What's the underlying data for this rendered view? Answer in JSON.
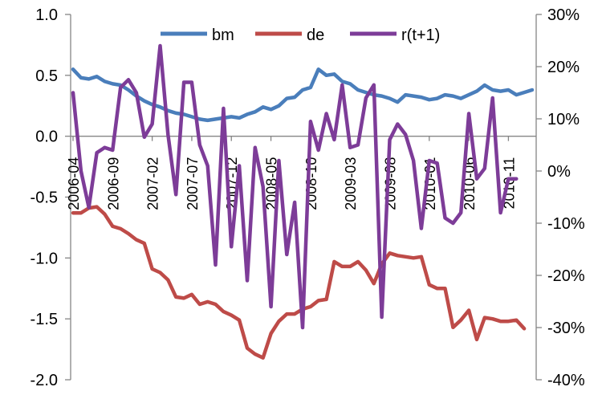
{
  "chart_data": {
    "type": "line",
    "x_tick_labels": [
      "2006-04",
      "2006-09",
      "2007-02",
      "2007-07",
      "2007-12",
      "2008-05",
      "2008-10",
      "2009-03",
      "2009-08",
      "2010-01",
      "2010-06",
      "2010-11"
    ],
    "y_left": {
      "ylim": [
        -2.0,
        1.0
      ],
      "ticks": [
        1.0,
        0.5,
        0.0,
        -0.5,
        -1.0,
        -1.5,
        -2.0
      ],
      "tick_labels": [
        "1.0",
        "0.5",
        "0.0",
        "-0.5",
        "-1.0",
        "-1.5",
        "-2.0"
      ]
    },
    "y_right": {
      "ylim": [
        -40,
        30
      ],
      "ticks": [
        30,
        20,
        10,
        0,
        -10,
        -20,
        -30,
        -40
      ],
      "tick_labels": [
        "30%",
        "20%",
        "10%",
        "0%",
        "-10%",
        "-20%",
        "-30%",
        "-40%"
      ]
    },
    "legend_placement": "top",
    "series": [
      {
        "name": "bm",
        "axis": "left",
        "color": "#4a7ebb",
        "values": [
          0.55,
          0.48,
          0.47,
          0.49,
          0.45,
          0.43,
          0.42,
          0.38,
          0.33,
          0.29,
          0.26,
          0.24,
          0.21,
          0.19,
          0.18,
          0.16,
          0.14,
          0.13,
          0.14,
          0.15,
          0.16,
          0.15,
          0.18,
          0.2,
          0.24,
          0.22,
          0.25,
          0.31,
          0.32,
          0.38,
          0.4,
          0.55,
          0.5,
          0.51,
          0.45,
          0.43,
          0.38,
          0.36,
          0.34,
          0.33,
          0.31,
          0.28,
          0.34,
          0.33,
          0.32,
          0.3,
          0.31,
          0.34,
          0.33,
          0.31,
          0.34,
          0.37,
          0.42,
          0.38,
          0.37,
          0.38,
          0.34,
          0.36,
          0.38
        ]
      },
      {
        "name": "de",
        "axis": "left",
        "color": "#be4b48",
        "values": [
          -0.63,
          -0.63,
          -0.59,
          -0.58,
          -0.64,
          -0.74,
          -0.76,
          -0.8,
          -0.85,
          -0.88,
          -1.09,
          -1.12,
          -1.18,
          -1.32,
          -1.33,
          -1.3,
          -1.38,
          -1.36,
          -1.38,
          -1.44,
          -1.47,
          -1.51,
          -1.74,
          -1.79,
          -1.82,
          -1.62,
          -1.52,
          -1.46,
          -1.46,
          -1.42,
          -1.4,
          -1.35,
          -1.34,
          -1.03,
          -1.07,
          -1.07,
          -1.03,
          -1.1,
          -1.21,
          -1.05,
          -0.96,
          -0.98,
          -0.99,
          -1.0,
          -0.99,
          -1.22,
          -1.25,
          -1.25,
          -1.57,
          -1.51,
          -1.43,
          -1.67,
          -1.49,
          -1.5,
          -1.52,
          -1.52,
          -1.51,
          -1.58
        ]
      },
      {
        "name": "r(t+1)",
        "axis": "right",
        "color": "#7d3c98",
        "values": [
          15,
          0,
          -7,
          3.5,
          4.5,
          4,
          16,
          17.5,
          15,
          6.5,
          9,
          24,
          7,
          -4.5,
          17,
          17,
          5,
          1,
          -18,
          12,
          -14.5,
          1,
          -21,
          4.5,
          -3,
          -26,
          2,
          -16,
          -6,
          -30,
          9.5,
          4,
          11,
          6,
          16.5,
          4.5,
          5,
          14,
          16.5,
          -28,
          6,
          9,
          7,
          2,
          -11,
          2,
          1.5,
          -9,
          -10,
          -8,
          11,
          -1.5,
          0.5,
          14,
          -8,
          -1.5,
          -1.5
        ]
      }
    ]
  }
}
